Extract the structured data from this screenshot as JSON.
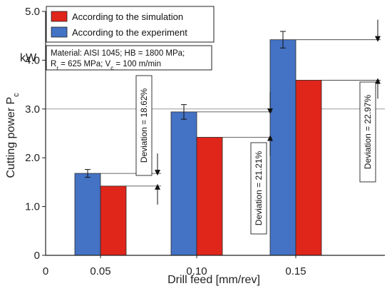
{
  "chart_data": {
    "type": "bar",
    "title": "",
    "categories": [
      "0.05",
      "0.10",
      "0.15"
    ],
    "series": [
      {
        "name": "According to the experiment",
        "values": [
          1.68,
          2.94,
          4.42
        ],
        "error": [
          0.08,
          0.15,
          0.17
        ],
        "color": "#4472C4"
      },
      {
        "name": "According to the simulation",
        "values": [
          1.42,
          2.42,
          3.59
        ],
        "color": "#E0251B"
      }
    ],
    "xlabel": "Drill feed [mm/rev]",
    "ylabel": "Cutting power P",
    "ylabel_sub": "c",
    "y_unit": "kW",
    "x_origin_label": "0",
    "ylim": [
      0,
      5.0
    ],
    "yticks": [
      "0",
      "1.0",
      "2.0",
      "3.0",
      "4.0",
      "5.0"
    ],
    "gridline_at": 3.0,
    "legend": {
      "placement": "top-left",
      "entries": [
        "According to the simulation",
        "According to the experiment"
      ]
    },
    "annotation": {
      "line1": "Material: AISI 1045; HB = 1800 MPa;",
      "line2_a": "R",
      "line2_sub_a": "r",
      "line2_b": " = 625 MPa; V",
      "line2_sub_b": "c",
      "line2_c": " = 100 m/min"
    },
    "deviations": [
      "Deviation = 18.62%",
      "Deviation = 21.21%",
      "Deviation = 22.97%"
    ]
  }
}
